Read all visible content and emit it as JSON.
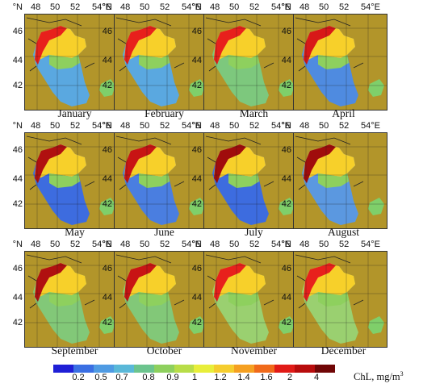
{
  "axes": {
    "lon_ticks": [
      "48",
      "50",
      "52",
      "54°E"
    ],
    "lat_unit": "°N",
    "lat_ticks": [
      "46",
      "44",
      "42"
    ]
  },
  "months": [
    {
      "label": "January",
      "south_color": "#5aa8e0",
      "coast_color": "#e8201c"
    },
    {
      "label": "February",
      "south_color": "#5aa8e0",
      "coast_color": "#e8201c"
    },
    {
      "label": "March",
      "south_color": "#7dc87d",
      "coast_color": "#e8201c"
    },
    {
      "label": "April",
      "south_color": "#4f8be0",
      "coast_color": "#d81818"
    },
    {
      "label": "May",
      "south_color": "#3d6cdf",
      "coast_color": "#b01010"
    },
    {
      "label": "June",
      "south_color": "#4a7ee0",
      "coast_color": "#c81414"
    },
    {
      "label": "July",
      "south_color": "#3d6cdf",
      "coast_color": "#a00c0c"
    },
    {
      "label": "August",
      "south_color": "#5b98e0",
      "coast_color": "#a00c0c"
    },
    {
      "label": "September",
      "south_color": "#82c878",
      "coast_color": "#b01010"
    },
    {
      "label": "October",
      "south_color": "#82c878",
      "coast_color": "#c81414"
    },
    {
      "label": "November",
      "south_color": "#9ad070",
      "coast_color": "#e8201c"
    },
    {
      "label": "December",
      "south_color": "#9ad070",
      "coast_color": "#e8201c"
    }
  ],
  "colorbar": {
    "colors": [
      "#1f1fd6",
      "#3a6fe3",
      "#4f9be3",
      "#5ab8d8",
      "#6cc48e",
      "#8ed05e",
      "#b8dd48",
      "#e8ee3a",
      "#f5cd2e",
      "#f5a021",
      "#f06a1a",
      "#e11b17",
      "#b80c0c",
      "#700606"
    ],
    "ticks": [
      "0.2",
      "0.5",
      "0.7",
      "0.8",
      "0.9",
      "1",
      "1.2",
      "1.4",
      "1.6",
      "2",
      "4"
    ],
    "unit_label": "ChL, mg/m",
    "unit_sup": "3"
  },
  "colors": {
    "land": "#b2952a",
    "grid": "#1a1a1a"
  }
}
